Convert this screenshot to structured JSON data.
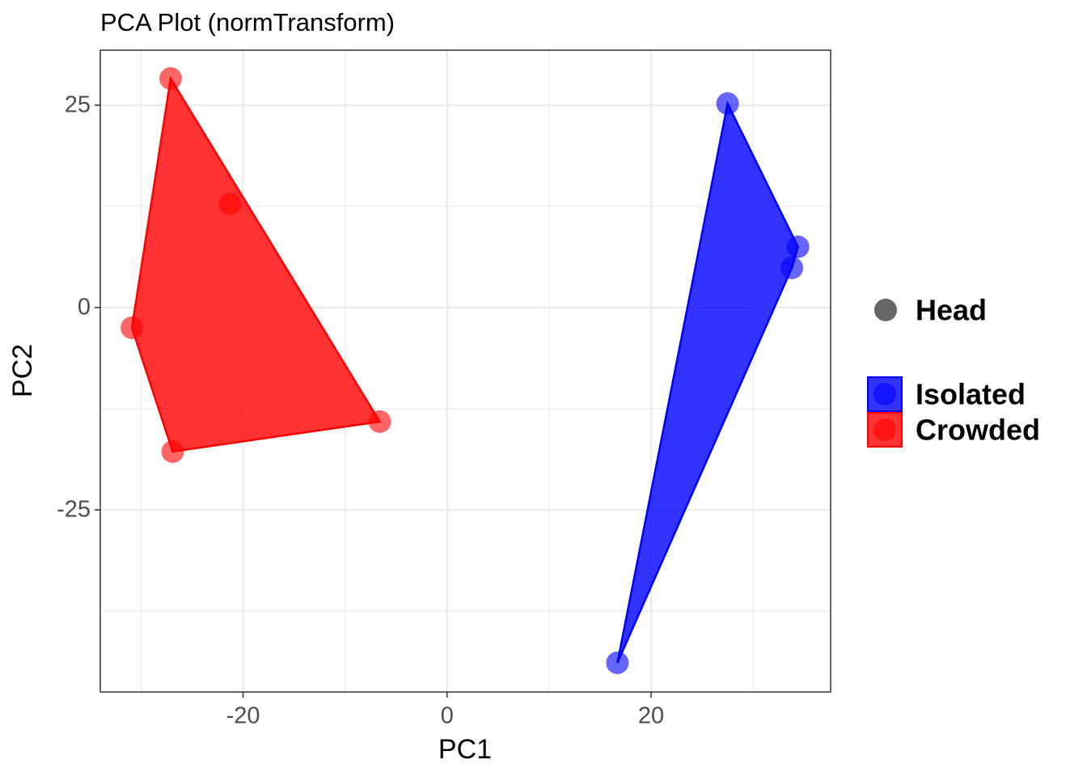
{
  "chart_data": {
    "type": "scatter",
    "title": "PCA Plot (normTransform)",
    "x_label": "PC1",
    "y_label": "PC2",
    "xlim": [
      -34,
      37.6
    ],
    "ylim": [
      -47.5,
      31.8
    ],
    "xticks": [
      -20,
      0,
      20
    ],
    "yticks": [
      25,
      0,
      -25
    ],
    "grid": true,
    "hull": true,
    "shape_legend": "Head",
    "legend": "right",
    "series": [
      {
        "name": "Isolated",
        "color": "#0000ff",
        "x": [
          27.5,
          34.4,
          33.8,
          16.7
        ],
        "values": [
          25.2,
          7.5,
          4.9,
          -43.9
        ]
      },
      {
        "name": "Crowded",
        "color": "#ff0000",
        "x": [
          -27.1,
          -21.3,
          -30.9,
          -26.9,
          -6.6
        ],
        "values": [
          28.3,
          12.8,
          -2.5,
          -17.8,
          -14.1
        ]
      }
    ]
  }
}
